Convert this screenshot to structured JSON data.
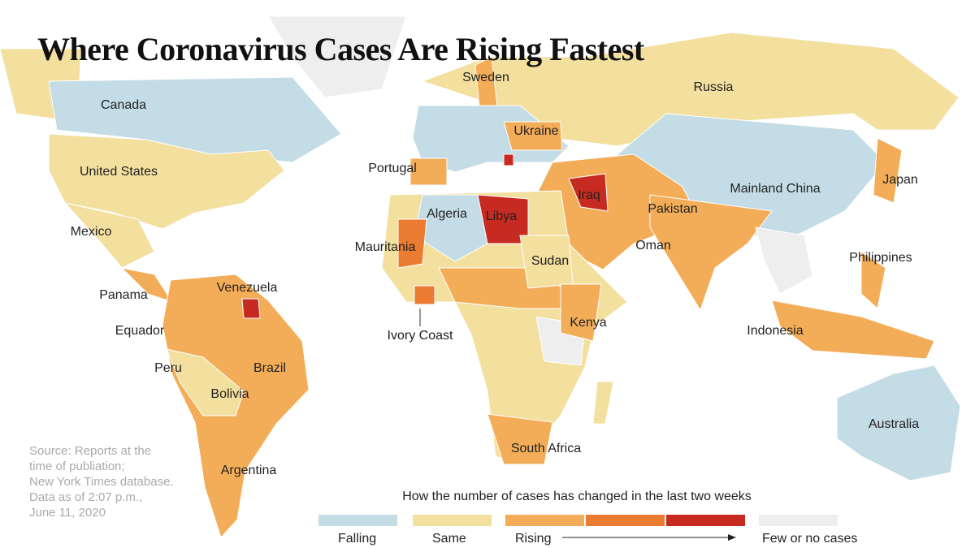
{
  "title": "Where Coronavirus Cases Are Rising Fastest",
  "labels": [
    "Sweden",
    "Russia",
    "Canada",
    "Ukraine",
    "Portugal",
    "United States",
    "Japan",
    "Mainland China",
    "Algeria",
    "Libya",
    "Iraq",
    "Pakistan",
    "Mexico",
    "Mauritania",
    "Oman",
    "Philippines",
    "Sudan",
    "Panama",
    "Venezuela",
    "Ivory Coast",
    "Kenya",
    "Equador",
    "Indonesia",
    "Peru",
    "Brazil",
    "Bolivia",
    "Australia",
    "South Africa",
    "Argentina"
  ],
  "source": [
    "Source: Reports at the",
    "time of publiation;",
    "New York Times database.",
    "Data as of 2:07 p.m.,",
    "June 11, 2020"
  ],
  "legend": {
    "title": "How the number of cases has changed in the last two weeks",
    "items": [
      {
        "label": "Falling",
        "colors": [
          "#c3dce6"
        ]
      },
      {
        "label": "Same",
        "colors": [
          "#f3df9e"
        ]
      },
      {
        "label": "Rising",
        "colors": [
          "#f3ad58",
          "#eb7b30",
          "#c72a20"
        ]
      },
      {
        "label": "Few or no cases",
        "colors": [
          "#eeeeee"
        ]
      }
    ]
  }
}
